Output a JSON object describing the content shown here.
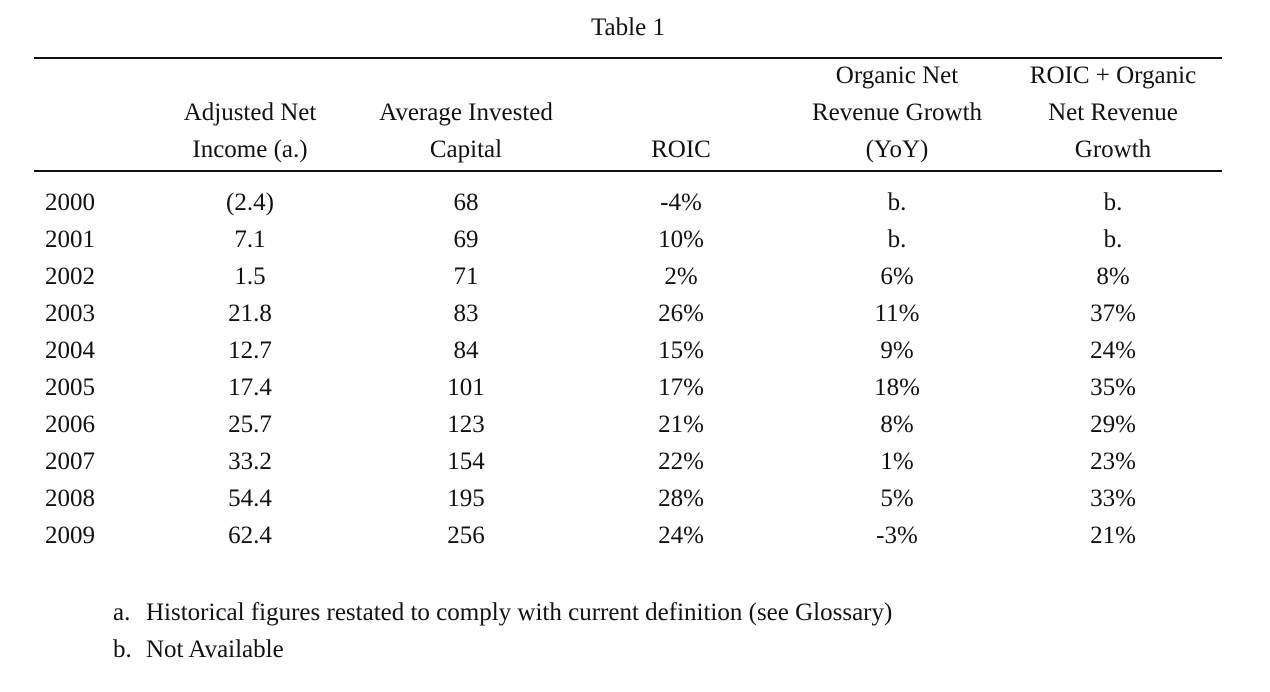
{
  "title": "Table 1",
  "columns": [
    {
      "lines": [
        "Adjusted Net",
        "Income (a.)"
      ]
    },
    {
      "lines": [
        "Average Invested",
        "Capital"
      ]
    },
    {
      "lines": [
        "ROIC"
      ]
    },
    {
      "lines": [
        "Organic Net",
        "Revenue Growth",
        "(YoY)"
      ]
    },
    {
      "lines": [
        "ROIC + Organic",
        "Net Revenue",
        "Growth"
      ]
    }
  ],
  "rows": [
    {
      "year": "2000",
      "cells": [
        "(2.4)",
        "68",
        "-4%",
        "b.",
        "b."
      ]
    },
    {
      "year": "2001",
      "cells": [
        "7.1",
        "69",
        "10%",
        "b.",
        "b."
      ]
    },
    {
      "year": "2002",
      "cells": [
        "1.5",
        "71",
        "2%",
        "6%",
        "8%"
      ]
    },
    {
      "year": "2003",
      "cells": [
        "21.8",
        "83",
        "26%",
        "11%",
        "37%"
      ]
    },
    {
      "year": "2004",
      "cells": [
        "12.7",
        "84",
        "15%",
        "9%",
        "24%"
      ]
    },
    {
      "year": "2005",
      "cells": [
        "17.4",
        "101",
        "17%",
        "18%",
        "35%"
      ]
    },
    {
      "year": "2006",
      "cells": [
        "25.7",
        "123",
        "21%",
        "8%",
        "29%"
      ]
    },
    {
      "year": "2007",
      "cells": [
        "33.2",
        "154",
        "22%",
        "1%",
        "23%"
      ]
    },
    {
      "year": "2008",
      "cells": [
        "54.4",
        "195",
        "28%",
        "5%",
        "33%"
      ]
    },
    {
      "year": "2009",
      "cells": [
        "62.4",
        "256",
        "24%",
        "-3%",
        "21%"
      ]
    }
  ],
  "footnotes": [
    {
      "marker": "a.",
      "text": "Historical figures restated to comply with current definition (see Glossary)"
    },
    {
      "marker": "b.",
      "text": "Not Available"
    }
  ]
}
